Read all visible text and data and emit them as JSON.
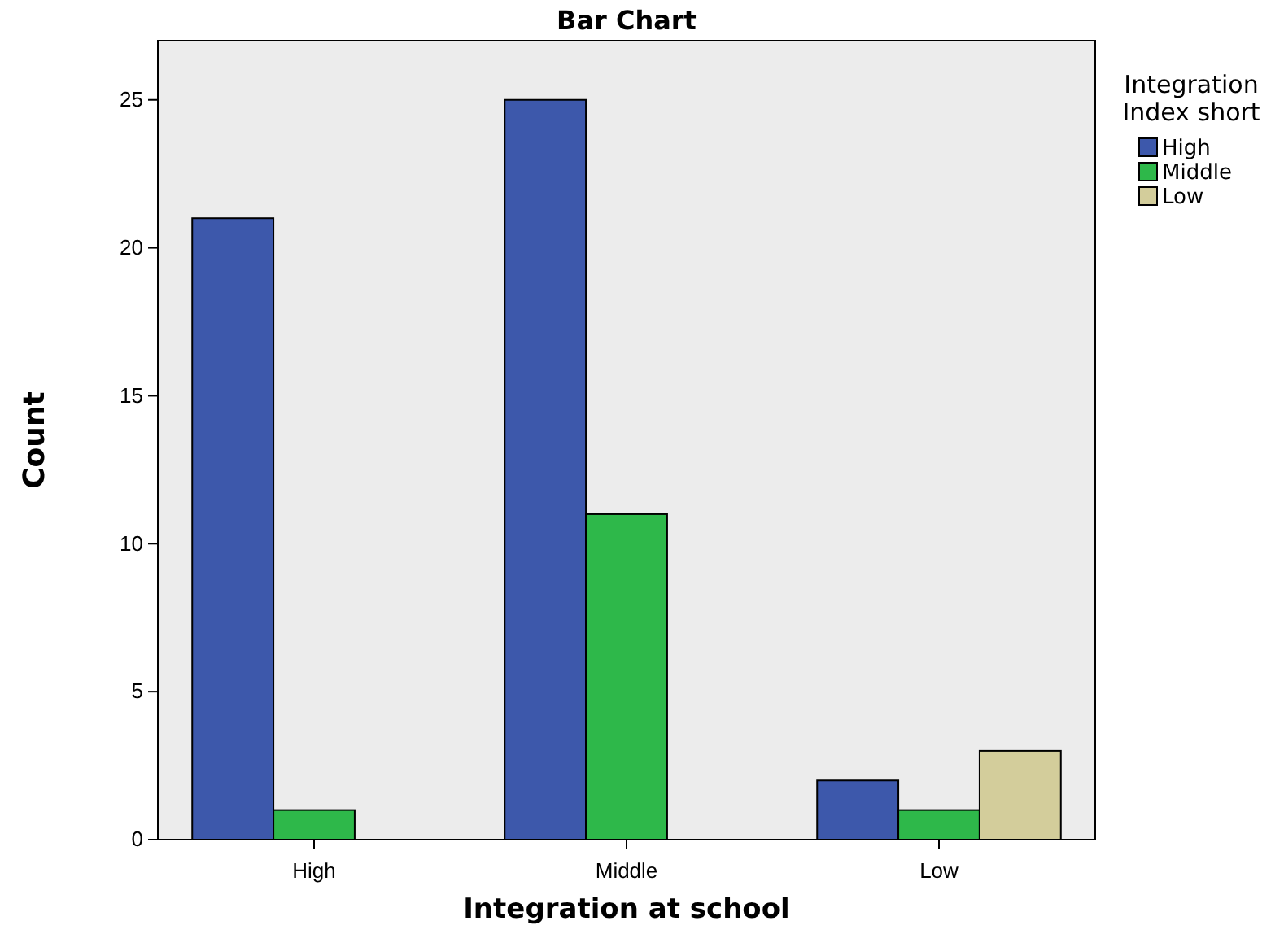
{
  "chart_data": {
    "type": "bar",
    "title": "Bar Chart",
    "xlabel": "Integration at school",
    "ylabel": "Count",
    "legend_title": "Integration Index short",
    "categories": [
      "High",
      "Middle",
      "Low"
    ],
    "series": [
      {
        "name": "High",
        "color": "#3d58ab",
        "values": [
          21,
          25,
          2
        ]
      },
      {
        "name": "Middle",
        "color": "#2eb84a",
        "values": [
          1,
          11,
          1
        ]
      },
      {
        "name": "Low",
        "color": "#d3cd9b",
        "values": [
          null,
          null,
          3
        ]
      }
    ],
    "ylim": [
      0,
      27
    ],
    "yticks": [
      0,
      5,
      10,
      15,
      20,
      25
    ],
    "grid": false,
    "legend": "top right"
  }
}
